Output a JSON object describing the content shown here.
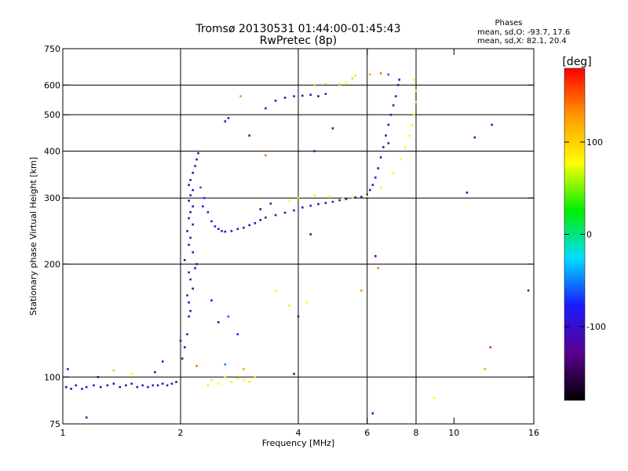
{
  "header": {
    "title": "Tromsø 20130531 01:44:00-01:45:43",
    "subtitle": "RwPretec (8p)",
    "phase_heading": "Phases",
    "phase_O": "mean, sd,O: -93.7, 17.6",
    "phase_X": "mean, sd,X:  82.1, 20.4"
  },
  "chart_data": {
    "type": "scatter",
    "xlabel": "Frequency [MHz]",
    "ylabel": "Stationary phase Virtual Height [km]",
    "x_scale": "log",
    "y_scale": "log",
    "xlim": [
      1,
      16
    ],
    "ylim": [
      75,
      750
    ],
    "x_ticks": [
      1,
      2,
      4,
      6,
      8,
      10,
      16
    ],
    "y_ticks": [
      75,
      100,
      200,
      300,
      400,
      500,
      600,
      750
    ],
    "x_gridlines": [
      2,
      4,
      6,
      8
    ],
    "y_gridlines": [
      100,
      200,
      300,
      400,
      500,
      600
    ],
    "colorbar": {
      "label": "[deg]",
      "range": [
        -180,
        180
      ],
      "ticks": [
        -100,
        0,
        100
      ],
      "colormap": "rainbow",
      "colors": [
        "#000000",
        "#5a0090",
        "#1a1aff",
        "#00ddff",
        "#00ee00",
        "#ffff00",
        "#ff9900",
        "#ff0000"
      ]
    },
    "series": [
      {
        "points": [
          [
            1.02,
            94,
            -120
          ],
          [
            1.05,
            93,
            -110
          ],
          [
            1.08,
            95,
            -115
          ],
          [
            1.12,
            93,
            -120
          ],
          [
            1.15,
            94,
            -110
          ],
          [
            1.2,
            95,
            -105
          ],
          [
            1.25,
            94,
            -115
          ],
          [
            1.3,
            95,
            -110
          ],
          [
            1.35,
            96,
            -112
          ],
          [
            1.4,
            94,
            -108
          ],
          [
            1.45,
            95,
            -110
          ],
          [
            1.5,
            96,
            -115
          ],
          [
            1.55,
            94,
            -112
          ],
          [
            1.6,
            95,
            -110
          ],
          [
            1.65,
            94,
            -108
          ],
          [
            1.7,
            95,
            -112
          ],
          [
            1.75,
            95,
            -110
          ],
          [
            1.8,
            96,
            -115
          ],
          [
            1.85,
            95,
            -118
          ],
          [
            1.9,
            96,
            -112
          ],
          [
            1.95,
            97,
            -110
          ],
          [
            1.03,
            105,
            -110
          ],
          [
            1.23,
            100,
            -120
          ],
          [
            1.35,
            104,
            60
          ],
          [
            1.5,
            102,
            80
          ],
          [
            1.15,
            78,
            -120
          ],
          [
            1.72,
            103,
            -110
          ],
          [
            1.8,
            110,
            -100
          ],
          [
            2.02,
            112,
            -120
          ],
          [
            2.05,
            120,
            -115
          ],
          [
            2.0,
            125,
            -110
          ],
          [
            2.08,
            130,
            -120
          ],
          [
            2.1,
            145,
            -118
          ],
          [
            2.12,
            150,
            -115
          ],
          [
            2.1,
            158,
            -112
          ],
          [
            2.08,
            165,
            -110
          ],
          [
            2.15,
            172,
            -120
          ],
          [
            2.12,
            182,
            -115
          ],
          [
            2.1,
            190,
            -118
          ],
          [
            2.18,
            195,
            -110
          ],
          [
            2.2,
            200,
            -115
          ],
          [
            2.05,
            205,
            -120
          ],
          [
            2.15,
            215,
            -110
          ],
          [
            2.1,
            225,
            -112
          ],
          [
            2.12,
            235,
            -115
          ],
          [
            2.08,
            245,
            -110
          ],
          [
            2.15,
            255,
            -105
          ],
          [
            2.1,
            265,
            -108
          ],
          [
            2.12,
            275,
            -110
          ],
          [
            2.15,
            285,
            -112
          ],
          [
            2.1,
            295,
            -115
          ],
          [
            2.12,
            305,
            -110
          ],
          [
            2.15,
            315,
            -108
          ],
          [
            2.1,
            325,
            -105
          ],
          [
            2.12,
            335,
            -110
          ],
          [
            2.15,
            350,
            -112
          ],
          [
            2.18,
            365,
            -110
          ],
          [
            2.2,
            380,
            -108
          ],
          [
            2.22,
            395,
            -110
          ],
          [
            2.25,
            320,
            -60
          ],
          [
            2.3,
            300,
            -70
          ],
          [
            2.28,
            285,
            -90
          ],
          [
            2.35,
            275,
            -80
          ],
          [
            2.4,
            260,
            -85
          ],
          [
            2.45,
            252,
            -80
          ],
          [
            2.5,
            248,
            -90
          ],
          [
            2.55,
            245,
            -95
          ],
          [
            2.6,
            244,
            -100
          ],
          [
            2.7,
            245,
            -105
          ],
          [
            2.8,
            248,
            -100
          ],
          [
            2.9,
            250,
            -110
          ],
          [
            3.0,
            254,
            -115
          ],
          [
            3.1,
            257,
            -112
          ],
          [
            3.2,
            262,
            -118
          ],
          [
            3.3,
            266,
            -120
          ],
          [
            3.5,
            270,
            -125
          ],
          [
            3.7,
            274,
            -120
          ],
          [
            3.9,
            278,
            -118
          ],
          [
            4.1,
            283,
            -120
          ],
          [
            4.3,
            286,
            -115
          ],
          [
            4.5,
            289,
            -118
          ],
          [
            4.7,
            291,
            -112
          ],
          [
            4.9,
            293,
            -110
          ],
          [
            5.1,
            296,
            -108
          ],
          [
            5.3,
            298,
            -110
          ],
          [
            5.6,
            301,
            -108
          ],
          [
            5.8,
            302,
            -112
          ],
          [
            6.0,
            306,
            -110
          ],
          [
            6.1,
            315,
            -112
          ],
          [
            6.2,
            325,
            -108
          ],
          [
            6.3,
            340,
            -110
          ],
          [
            6.4,
            360,
            -112
          ],
          [
            6.5,
            385,
            -110
          ],
          [
            6.6,
            410,
            -108
          ],
          [
            6.7,
            440,
            -110
          ],
          [
            6.8,
            470,
            -112
          ],
          [
            6.9,
            500,
            -110
          ],
          [
            7.0,
            530,
            -108
          ],
          [
            7.1,
            560,
            -110
          ],
          [
            7.2,
            600,
            -105
          ],
          [
            7.25,
            620,
            -110
          ],
          [
            3.4,
            290,
            -115
          ],
          [
            3.2,
            280,
            -118
          ],
          [
            4.0,
            300,
            60
          ],
          [
            4.4,
            305,
            70
          ],
          [
            4.8,
            302,
            75
          ],
          [
            5.2,
            300,
            72
          ],
          [
            5.5,
            301,
            68
          ],
          [
            3.8,
            295,
            80
          ],
          [
            6.0,
            303,
            85
          ],
          [
            6.5,
            320,
            85
          ],
          [
            7.0,
            350,
            82
          ],
          [
            7.3,
            380,
            80
          ],
          [
            7.5,
            410,
            78
          ],
          [
            7.7,
            440,
            80
          ],
          [
            7.8,
            470,
            82
          ],
          [
            7.9,
            500,
            85
          ],
          [
            8.0,
            540,
            80
          ],
          [
            8.0,
            580,
            78
          ],
          [
            7.9,
            620,
            85
          ],
          [
            2.4,
            98,
            70
          ],
          [
            2.5,
            96,
            75
          ],
          [
            2.6,
            100,
            80
          ],
          [
            2.7,
            97,
            72
          ],
          [
            2.8,
            99,
            78
          ],
          [
            2.9,
            98,
            75
          ],
          [
            3.0,
            97,
            80
          ],
          [
            3.1,
            100,
            70
          ],
          [
            2.35,
            95,
            85
          ],
          [
            2.9,
            105,
            120
          ],
          [
            2.2,
            107,
            140
          ],
          [
            2.6,
            108,
            -50
          ],
          [
            2.8,
            130,
            -80
          ],
          [
            2.5,
            140,
            -120
          ],
          [
            2.65,
            145,
            -60
          ],
          [
            2.4,
            160,
            -110
          ],
          [
            2.6,
            480,
            -120
          ],
          [
            2.65,
            490,
            -115
          ],
          [
            3.3,
            520,
            -110
          ],
          [
            3.5,
            545,
            -115
          ],
          [
            3.7,
            555,
            -112
          ],
          [
            3.9,
            560,
            -110
          ],
          [
            4.1,
            562,
            -115
          ],
          [
            4.3,
            565,
            -118
          ],
          [
            4.5,
            560,
            -112
          ],
          [
            4.7,
            568,
            -110
          ],
          [
            4.4,
            600,
            60
          ],
          [
            4.7,
            605,
            85
          ],
          [
            5.1,
            602,
            110
          ],
          [
            5.3,
            610,
            80
          ],
          [
            5.5,
            625,
            100
          ],
          [
            6.1,
            640,
            120
          ],
          [
            6.5,
            645,
            140
          ],
          [
            6.8,
            640,
            -60
          ],
          [
            4.9,
            460,
            -120
          ],
          [
            4.4,
            400,
            -110
          ],
          [
            6.3,
            210,
            -110
          ],
          [
            6.2,
            80,
            -110
          ],
          [
            6.4,
            195,
            140
          ],
          [
            5.8,
            170,
            130
          ],
          [
            3.8,
            155,
            70
          ],
          [
            4.2,
            158,
            80
          ],
          [
            4.0,
            145,
            -120
          ],
          [
            3.9,
            102,
            -130
          ],
          [
            3.5,
            170,
            80
          ],
          [
            3.3,
            390,
            140
          ],
          [
            4.3,
            240,
            -120
          ],
          [
            6.8,
            420,
            -120
          ],
          [
            8.9,
            88,
            80
          ],
          [
            10.8,
            310,
            -110
          ],
          [
            11.3,
            435,
            -110
          ],
          [
            12.5,
            470,
            -110
          ],
          [
            12.4,
            120,
            170
          ],
          [
            12.0,
            105,
            120
          ],
          [
            15.5,
            170,
            -120
          ],
          [
            3.0,
            440,
            -120
          ],
          [
            2.85,
            560,
            130
          ],
          [
            5.6,
            635,
            70
          ]
        ]
      }
    ]
  }
}
